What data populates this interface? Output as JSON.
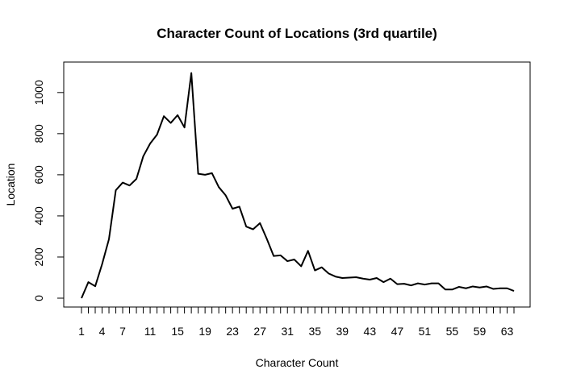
{
  "chart_data": {
    "type": "line",
    "title": "Character Count of Locations (3rd quartile)",
    "xlabel": "Character Count",
    "ylabel": "Location",
    "xlim": [
      1,
      64
    ],
    "ylim": [
      0,
      1100
    ],
    "grid": false,
    "x_tick_labels": [
      "1",
      "4",
      "7",
      "11",
      "15",
      "19",
      "23",
      "27",
      "31",
      "35",
      "39",
      "43",
      "47",
      "51",
      "55",
      "59",
      "63"
    ],
    "y_tick_labels": [
      "0",
      "200",
      "400",
      "600",
      "800",
      "1000"
    ],
    "series": [
      {
        "color": "#000000",
        "x": [
          1,
          2,
          3,
          4,
          5,
          6,
          7,
          8,
          9,
          10,
          11,
          12,
          13,
          14,
          15,
          16,
          17,
          18,
          19,
          20,
          21,
          22,
          23,
          24,
          25,
          26,
          27,
          28,
          29,
          30,
          31,
          32,
          33,
          34,
          35,
          36,
          37,
          38,
          39,
          40,
          41,
          42,
          43,
          44,
          45,
          46,
          47,
          48,
          49,
          50,
          51,
          52,
          53,
          54,
          55,
          56,
          57,
          58,
          59,
          60,
          61,
          62,
          63,
          64
        ],
        "y": [
          0,
          78,
          58,
          165,
          287,
          525,
          562,
          548,
          580,
          690,
          752,
          795,
          885,
          852,
          890,
          830,
          1095,
          605,
          600,
          608,
          540,
          500,
          435,
          445,
          348,
          335,
          365,
          288,
          205,
          208,
          180,
          188,
          155,
          230,
          135,
          150,
          120,
          105,
          98,
          100,
          102,
          95,
          90,
          98,
          78,
          95,
          68,
          70,
          62,
          72,
          66,
          72,
          72,
          42,
          42,
          55,
          48,
          57,
          52,
          57,
          45,
          48,
          48,
          35
        ]
      }
    ]
  }
}
